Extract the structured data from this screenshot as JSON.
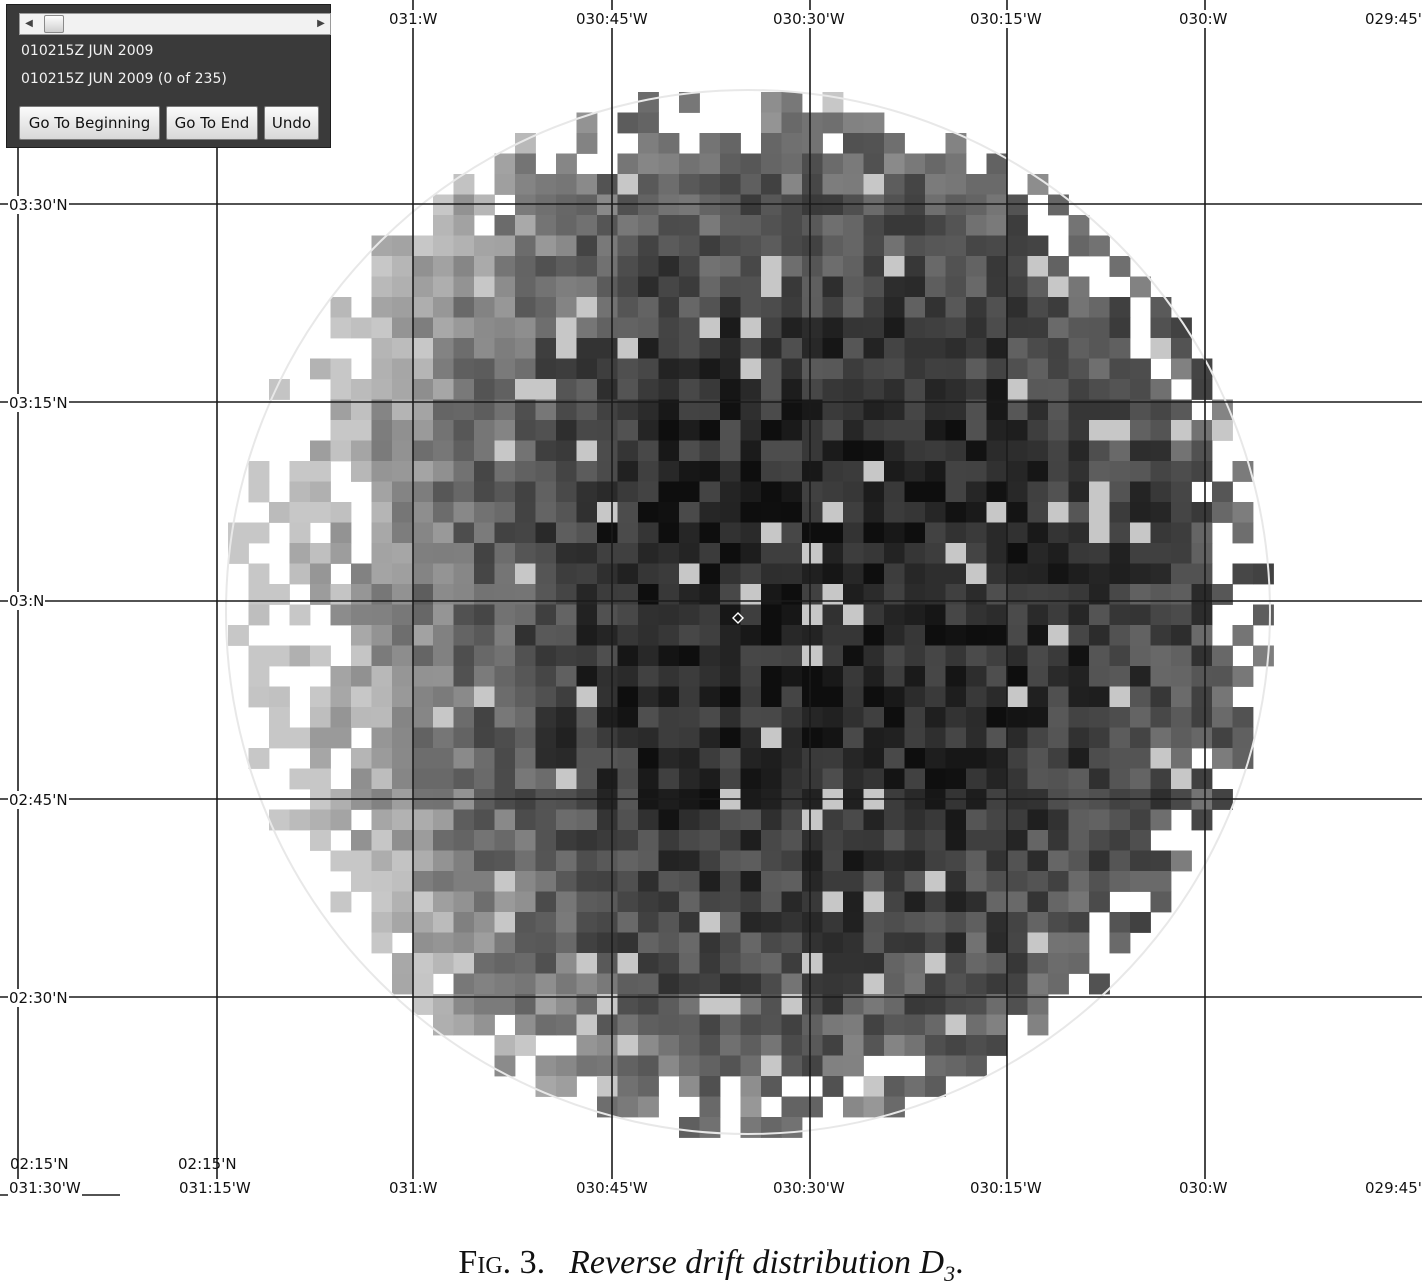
{
  "map": {
    "top_longitude_labels": [
      "031:W",
      "030:45'W",
      "030:30'W",
      "030:15'W",
      "030:W",
      "029:45'"
    ],
    "bottom_longitude_labels": [
      "031:30'W",
      "031:15'W",
      "031:W",
      "030:45'W",
      "030:30'W",
      "030:15'W",
      "030:W",
      "029:45'"
    ],
    "bottom_latitude_labels": [
      "02:15'N",
      "02:15'N"
    ],
    "latitude_labels": [
      "03:30'N",
      "03:15'N",
      "03:N",
      "02:45'N",
      "02:30'N"
    ],
    "colors": {
      "grid_line": "#1a1a1a",
      "boundary_circle": "#e8e8e8",
      "low_probability": "#d9d9d9",
      "high_probability": "#050505"
    },
    "center_marker_icon": "diamond-marker-icon"
  },
  "playback": {
    "current_time": "010215Z JUN 2009",
    "frame_status": "010215Z JUN 2009 (0 of 235)",
    "frame_index": 0,
    "frame_count": 235,
    "slider_left_icon": "triangle-left-icon",
    "slider_right_icon": "triangle-right-icon",
    "buttons": {
      "beginning": "Go To Beginning",
      "end": "Go To End",
      "undo": "Undo"
    }
  },
  "caption": {
    "label": "Fig. 3.",
    "title": "Reverse drift distribution D",
    "subscript": "3",
    "suffix": "."
  }
}
